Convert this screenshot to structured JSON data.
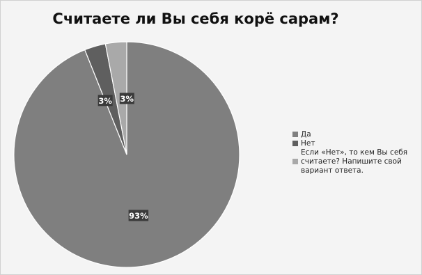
{
  "chart_data": {
    "type": "pie",
    "title": "Считаете ли Вы себя корё сарам?",
    "slices": [
      {
        "label": "Да",
        "value": 93,
        "data_label": "93%",
        "color": "#7f7f7f"
      },
      {
        "label": "Нет",
        "value": 3,
        "data_label": "3%",
        "color": "#5f5f5f"
      },
      {
        "label": "Если «Нет», то кем Вы себя считаете? Напишите свой вариант ответа.",
        "value": 3,
        "data_label": "3%",
        "color": "#a9a9a9"
      }
    ],
    "legend_lines": [
      [
        "Да"
      ],
      [
        "Нет"
      ],
      [
        "Если «Нет», то кем Вы себя",
        "считаете? Напишите свой",
        "вариант ответа."
      ]
    ],
    "legend_position": "right"
  }
}
